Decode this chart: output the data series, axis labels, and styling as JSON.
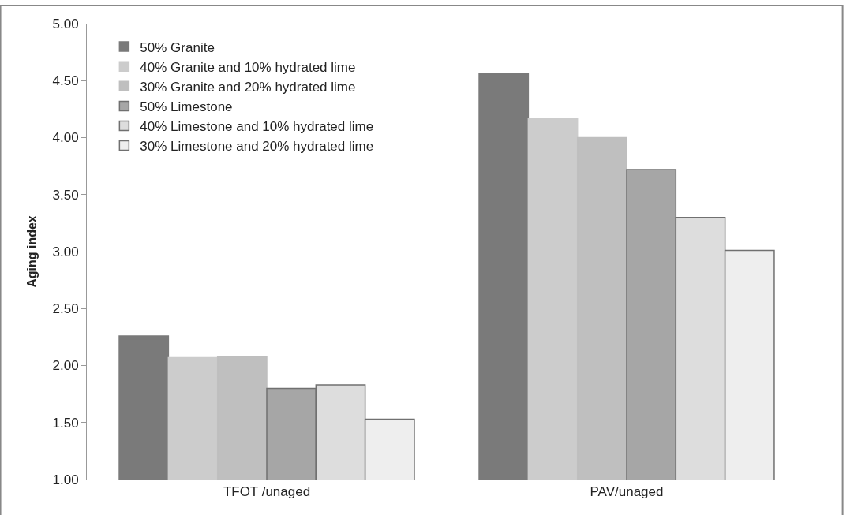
{
  "chart_data": {
    "type": "bar",
    "ylabel": "Aging index",
    "categories": [
      "TFOT /unaged",
      "PAV/unaged"
    ],
    "series": [
      {
        "name": "50% Granite",
        "color": "#7a7a7a",
        "values": [
          2.26,
          4.56
        ]
      },
      {
        "name": "40% Granite and 10% hydrated lime",
        "color": "#cccccc",
        "values": [
          2.07,
          4.17
        ]
      },
      {
        "name": "30% Granite and 20% hydrated lime",
        "color": "#bfbfbf",
        "values": [
          2.08,
          4.0
        ]
      },
      {
        "name": "50% Limestone",
        "color": "#a6a6a6",
        "values": [
          1.8,
          3.72
        ]
      },
      {
        "name": "40% Limestone and 10% hydrated lime",
        "color": "#dddddd",
        "values": [
          1.83,
          3.3
        ]
      },
      {
        "name": "30% Limestone and 20% hydrated lime",
        "color": "#eeeeee",
        "values": [
          1.53,
          3.01
        ]
      }
    ],
    "ylim": [
      1.0,
      5.0
    ],
    "yticks": [
      {
        "value": 1.0,
        "label": "1.00"
      },
      {
        "value": 1.5,
        "label": "1.50"
      },
      {
        "value": 2.0,
        "label": "2.00"
      },
      {
        "value": 2.5,
        "label": "2.50"
      },
      {
        "value": 3.0,
        "label": "3.00"
      },
      {
        "value": 3.5,
        "label": "3.50"
      },
      {
        "value": 4.0,
        "label": "4.00"
      },
      {
        "value": 4.5,
        "label": "4.50"
      },
      {
        "value": 5.0,
        "label": "5.00"
      }
    ],
    "legend": "top left"
  }
}
